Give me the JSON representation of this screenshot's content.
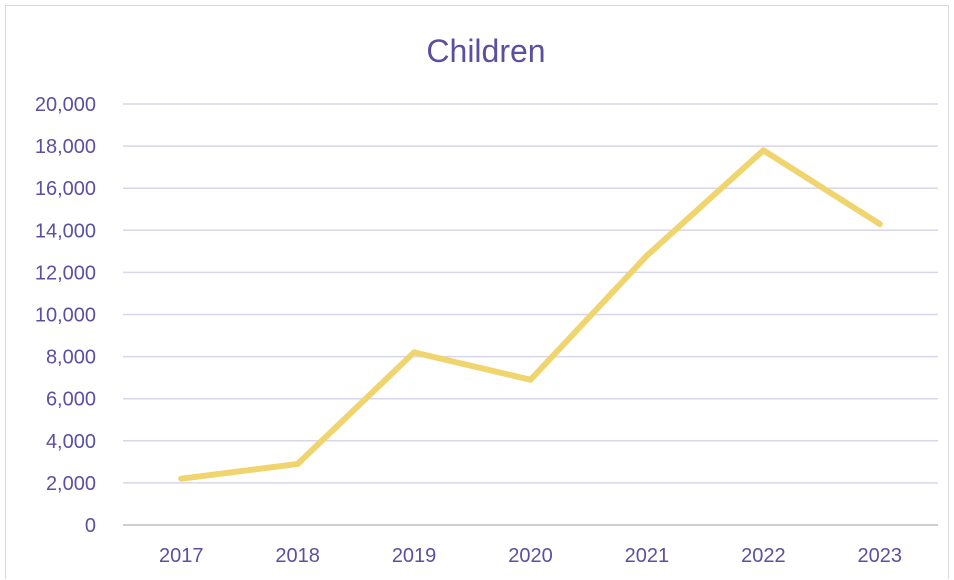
{
  "chart_data": {
    "type": "line",
    "title": "Children",
    "xlabel": "",
    "ylabel": "",
    "categories": [
      "2017",
      "2018",
      "2019",
      "2020",
      "2021",
      "2022",
      "2023"
    ],
    "series": [
      {
        "values": [
          2200,
          2900,
          8200,
          6900,
          12800,
          17800,
          14300
        ]
      }
    ],
    "ylim": [
      0,
      20000
    ],
    "y_ticks": [
      0,
      2000,
      4000,
      6000,
      8000,
      10000,
      12000,
      14000,
      16000,
      18000,
      20000
    ],
    "y_tick_labels": [
      "0",
      "2,000",
      "4,000",
      "6,000",
      "8,000",
      "10,000",
      "12,000",
      "14,000",
      "16,000",
      "18,000",
      "20,000"
    ],
    "grid": true,
    "legend": "none",
    "colors": {
      "line": "#f0d46e",
      "text": "#5b50a0",
      "grid": "#d8d6ea",
      "axis": "#bfbfbf"
    }
  }
}
